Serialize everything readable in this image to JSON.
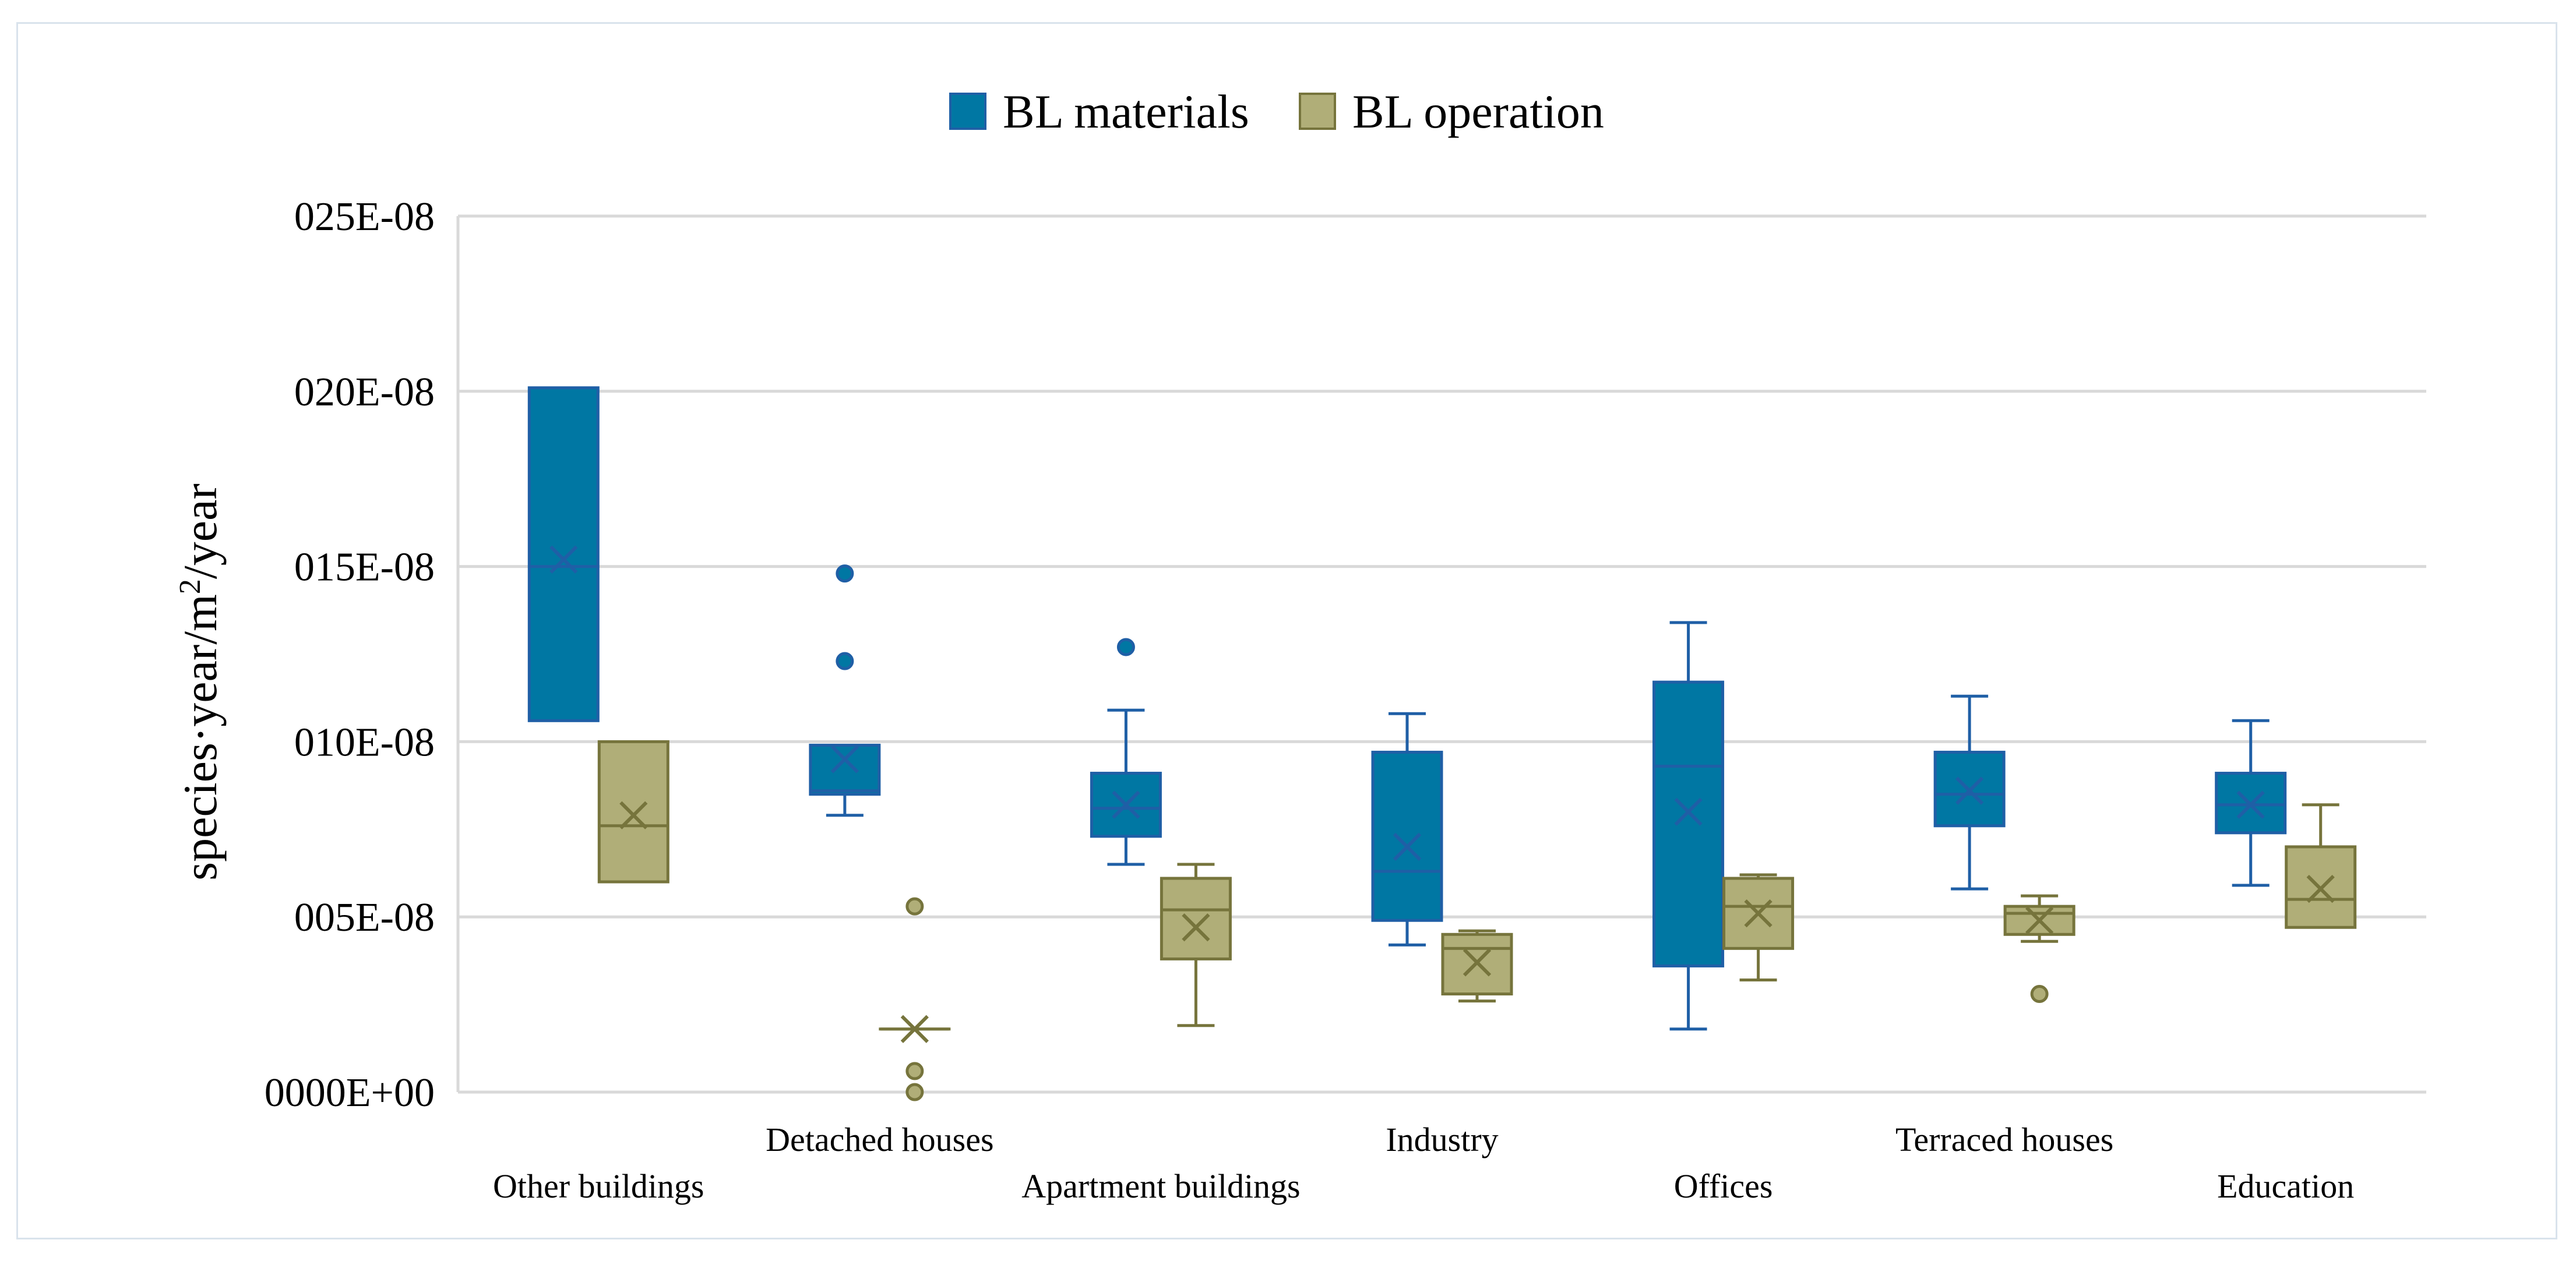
{
  "chart_data": {
    "type": "box",
    "title": "",
    "xlabel": "",
    "ylabel_main": "species·year/m",
    "ylabel_sup": "2",
    "ylabel_tail": "/year",
    "ylim": [
      0,
      2.5e-07
    ],
    "yticks": [
      0,
      5e-08,
      1e-07,
      1.5e-07,
      2e-07,
      2.5e-07
    ],
    "ytick_labels": [
      "0000E+00",
      "005E-08",
      "010E-08",
      "015E-08",
      "020E-08",
      "025E-08"
    ],
    "grid": true,
    "legend_position": "top-center",
    "categories": [
      "Other buildings",
      "Detached houses",
      "Apartment buildings",
      "Industry",
      "Offices",
      "Terraced houses",
      "Education"
    ],
    "series": [
      {
        "name": "BL materials",
        "color": "#0077a3",
        "edge": "#1f5fa6",
        "boxes": [
          {
            "min": 1.06e-07,
            "q1": 1.06e-07,
            "median": 1.5e-07,
            "q3": 2.01e-07,
            "max": 2.01e-07,
            "mean": 1.52e-07,
            "outliers": []
          },
          {
            "min": 7.9e-08,
            "q1": 8.5e-08,
            "median": 8.6e-08,
            "q3": 9.9e-08,
            "max": 9.9e-08,
            "mean": 9.5e-08,
            "outliers": [
              1.23e-07,
              1.48e-07
            ]
          },
          {
            "min": 6.5e-08,
            "q1": 7.3e-08,
            "median": 8.1e-08,
            "q3": 9.1e-08,
            "max": 1.09e-07,
            "mean": 8.2e-08,
            "outliers": [
              1.27e-07
            ]
          },
          {
            "min": 4.2e-08,
            "q1": 4.9e-08,
            "median": 6.3e-08,
            "q3": 9.7e-08,
            "max": 1.08e-07,
            "mean": 7e-08,
            "outliers": []
          },
          {
            "min": 1.8e-08,
            "q1": 3.6e-08,
            "median": 9.3e-08,
            "q3": 1.17e-07,
            "max": 1.34e-07,
            "mean": 8e-08,
            "outliers": []
          },
          {
            "min": 5.8e-08,
            "q1": 7.6e-08,
            "median": 8.5e-08,
            "q3": 9.7e-08,
            "max": 1.13e-07,
            "mean": 8.6e-08,
            "outliers": []
          },
          {
            "min": 5.9e-08,
            "q1": 7.4e-08,
            "median": 8.2e-08,
            "q3": 9.1e-08,
            "max": 1.06e-07,
            "mean": 8.2e-08,
            "outliers": []
          }
        ]
      },
      {
        "name": "BL operation",
        "color": "#b0ae78",
        "edge": "#76743c",
        "boxes": [
          {
            "min": 6e-08,
            "q1": 6e-08,
            "median": 7.6e-08,
            "q3": 1e-07,
            "max": 1e-07,
            "mean": 7.9e-08,
            "outliers": []
          },
          {
            "min": 1.8e-08,
            "q1": 1.8e-08,
            "median": 1.8e-08,
            "q3": 1.8e-08,
            "max": 1.8e-08,
            "mean": 1.8e-08,
            "outliers": [
              0,
              6e-09,
              5.3e-08
            ]
          },
          {
            "min": 1.9e-08,
            "q1": 3.8e-08,
            "median": 5.2e-08,
            "q3": 6.1e-08,
            "max": 6.5e-08,
            "mean": 4.7e-08,
            "outliers": []
          },
          {
            "min": 2.6e-08,
            "q1": 2.8e-08,
            "median": 4.1e-08,
            "q3": 4.5e-08,
            "max": 4.6e-08,
            "mean": 3.7e-08,
            "outliers": []
          },
          {
            "min": 3.2e-08,
            "q1": 4.1e-08,
            "median": 5.3e-08,
            "q3": 6.1e-08,
            "max": 6.2e-08,
            "mean": 5.1e-08,
            "outliers": []
          },
          {
            "min": 4.3e-08,
            "q1": 4.5e-08,
            "median": 5.1e-08,
            "q3": 5.3e-08,
            "max": 5.6e-08,
            "mean": 4.9e-08,
            "outliers": [
              2.8e-08
            ]
          },
          {
            "min": 4.7e-08,
            "q1": 4.7e-08,
            "median": 5.5e-08,
            "q3": 7e-08,
            "max": 8.2e-08,
            "mean": 5.8e-08,
            "outliers": []
          }
        ]
      }
    ]
  }
}
